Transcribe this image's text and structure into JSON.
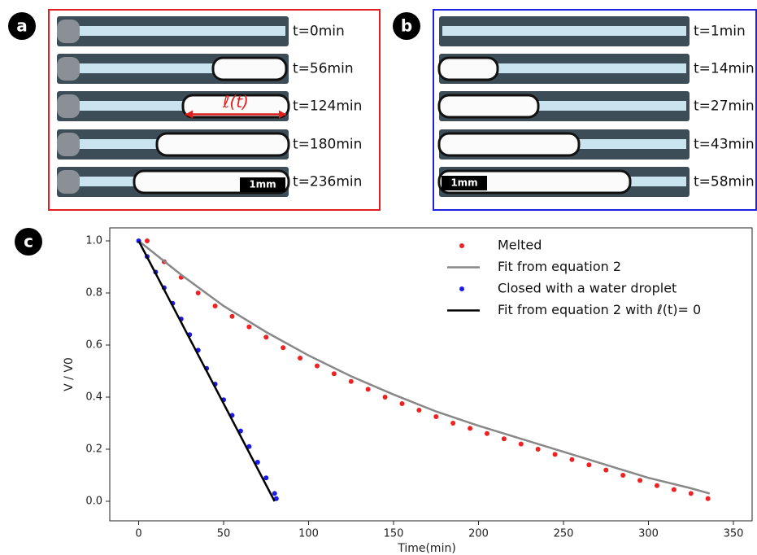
{
  "panels": [
    {
      "label": "a",
      "times": [
        "t=0min",
        "t=56min",
        "t=124min",
        "t=180min",
        "t=236min"
      ],
      "scale": "1mm",
      "annotation": "ℓ(t)",
      "color": "#e02020"
    },
    {
      "label": "b",
      "times": [
        "t=1min",
        "t=14min",
        "t=27min",
        "t=43min",
        "t=58min"
      ],
      "scale": "1mm",
      "color": "#2020e0"
    }
  ],
  "chart_data": {
    "type": "scatter",
    "panel_label": "c",
    "x_label": "Time(min)",
    "y_label": "V / V0",
    "xlim": [
      -17,
      361
    ],
    "ylim": [
      -0.075,
      1.05
    ],
    "xticks": [
      0,
      50,
      100,
      150,
      200,
      250,
      300,
      350
    ],
    "yticks": [
      {
        "value": 0,
        "label": "0.0"
      },
      0.2,
      0.4,
      0.6,
      0.8,
      {
        "value": 1,
        "label": "1.0"
      }
    ],
    "series": [
      {
        "name": "Melted",
        "kind": "points",
        "color": "#ee2222",
        "x": [
          5,
          15,
          25,
          35,
          45,
          55,
          65,
          75,
          85,
          95,
          105,
          115,
          125,
          135,
          145,
          155,
          165,
          175,
          185,
          195,
          205,
          215,
          225,
          235,
          245,
          255,
          265,
          275,
          285,
          295,
          305,
          315,
          325,
          335
        ],
        "values": [
          1.0,
          0.92,
          0.86,
          0.8,
          0.75,
          0.71,
          0.67,
          0.63,
          0.59,
          0.55,
          0.52,
          0.49,
          0.46,
          0.43,
          0.4,
          0.375,
          0.35,
          0.325,
          0.3,
          0.28,
          0.26,
          0.24,
          0.22,
          0.2,
          0.18,
          0.16,
          0.14,
          0.12,
          0.1,
          0.08,
          0.06,
          0.045,
          0.03,
          0.01
        ]
      },
      {
        "name": "Fit from equation 2",
        "kind": "line",
        "color": "#888888",
        "x": [
          0,
          25,
          50,
          75,
          100,
          125,
          150,
          175,
          200,
          225,
          250,
          275,
          300,
          325,
          336
        ],
        "values": [
          1.0,
          0.87,
          0.75,
          0.65,
          0.56,
          0.48,
          0.41,
          0.345,
          0.29,
          0.24,
          0.19,
          0.14,
          0.09,
          0.05,
          0.03
        ]
      },
      {
        "name": "Closed with a water droplet",
        "kind": "points",
        "color": "#1a1aee",
        "x": [
          0,
          5,
          10,
          15,
          20,
          25,
          30,
          35,
          40,
          45,
          50,
          55,
          60,
          65,
          70,
          75,
          80,
          81
        ],
        "values": [
          1.0,
          0.94,
          0.88,
          0.82,
          0.76,
          0.7,
          0.64,
          0.58,
          0.51,
          0.45,
          0.39,
          0.33,
          0.27,
          0.21,
          0.15,
          0.09,
          0.03,
          0.01
        ]
      },
      {
        "name": "Fit from equation 2 with ℓ(t)= 0",
        "kind": "line",
        "color": "#000000",
        "x": [
          0,
          80
        ],
        "values": [
          1.0,
          0.0
        ]
      }
    ]
  }
}
